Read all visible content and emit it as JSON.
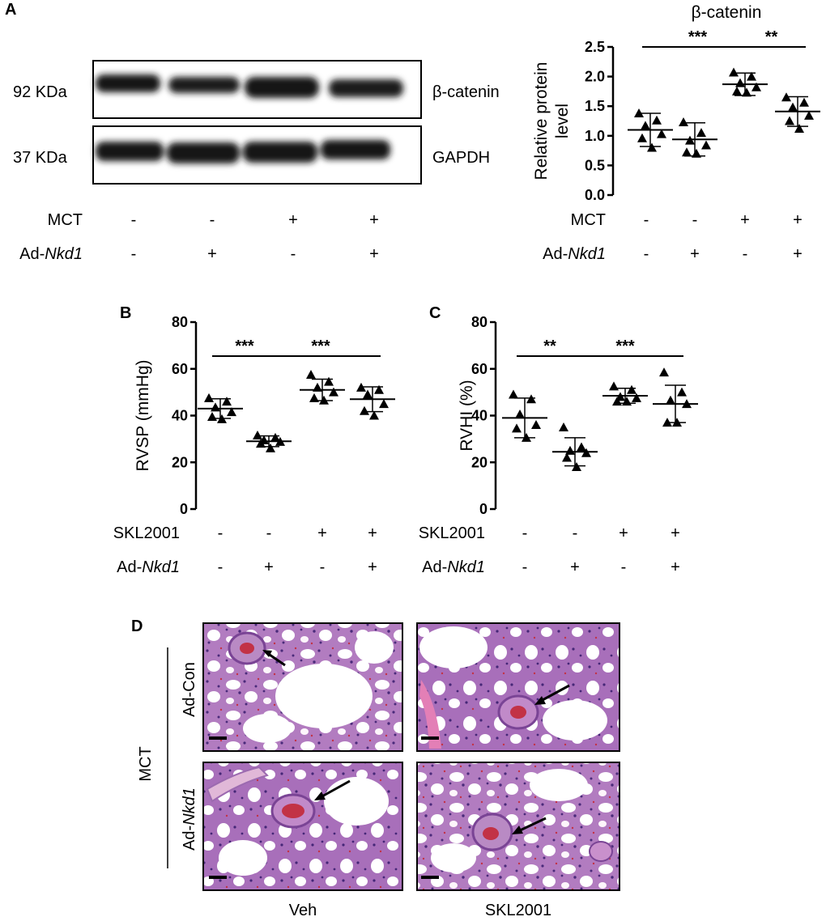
{
  "panels": {
    "A": "A",
    "B": "B",
    "C": "C",
    "D": "D"
  },
  "blot": {
    "bands": [
      {
        "kda": "92 KDa",
        "protein": "β-catenin"
      },
      {
        "kda": "37 KDa",
        "protein": "GAPDH"
      }
    ],
    "rows": [
      {
        "label": "MCT",
        "italic_part": "",
        "signs": [
          "-",
          "-",
          "+",
          "+"
        ]
      },
      {
        "label": "Ad-",
        "italic_part": "Nkd1",
        "signs": [
          "-",
          "+",
          "-",
          "+"
        ]
      }
    ]
  },
  "chart_data": [
    {
      "id": "A",
      "type": "scatter",
      "title": "β-catenin",
      "ylabel": "Relative protein level",
      "ylim": [
        0.0,
        2.5
      ],
      "yticks": [
        "0.0",
        "0.5",
        "1.0",
        "1.5",
        "2.0",
        "2.5"
      ],
      "groups": [
        {
          "mean": 1.1,
          "sd": 0.28,
          "points": [
            1.38,
            1.26,
            1.17,
            1.03,
            0.96,
            0.8
          ]
        },
        {
          "mean": 0.94,
          "sd": 0.28,
          "points": [
            1.23,
            1.05,
            0.92,
            0.84,
            0.72,
            0.7
          ]
        },
        {
          "mean": 1.87,
          "sd": 0.19,
          "points": [
            2.07,
            2.0,
            1.89,
            1.82,
            1.75,
            1.73
          ]
        },
        {
          "mean": 1.41,
          "sd": 0.25,
          "points": [
            1.65,
            1.56,
            1.48,
            1.34,
            1.25,
            1.12
          ]
        }
      ],
      "significance": [
        {
          "from": 0,
          "to": 2,
          "label": "***"
        },
        {
          "from": 2,
          "to": 3,
          "label": "**"
        }
      ],
      "rows": [
        {
          "label": "MCT",
          "italic_part": "",
          "signs": [
            "-",
            "-",
            "+",
            "+"
          ]
        },
        {
          "label": "Ad-",
          "italic_part": "Nkd1",
          "signs": [
            "-",
            "+",
            "-",
            "+"
          ]
        }
      ]
    },
    {
      "id": "B",
      "type": "scatter",
      "ylabel": "RVSP (mmHg)",
      "ylim": [
        0,
        80
      ],
      "yticks": [
        "0",
        "20",
        "40",
        "60",
        "80"
      ],
      "groups": [
        {
          "mean": 43.0,
          "sd": 4.2,
          "points": [
            47.5,
            46.0,
            43.5,
            41.5,
            39.5,
            38.5
          ]
        },
        {
          "mean": 29.0,
          "sd": 2.3,
          "points": [
            31.5,
            30.5,
            29.5,
            28.8,
            28.0,
            26.0
          ]
        },
        {
          "mean": 51.0,
          "sd": 4.6,
          "points": [
            57.5,
            54.5,
            52.0,
            50.0,
            47.5,
            46.5
          ]
        },
        {
          "mean": 47.0,
          "sd": 5.3,
          "points": [
            52.0,
            51.0,
            49.0,
            45.0,
            42.0,
            40.0
          ]
        }
      ],
      "significance": [
        {
          "from": 0,
          "to": 1,
          "label": "***"
        },
        {
          "from": 1,
          "to": 3,
          "label": "***"
        }
      ],
      "rows": [
        {
          "label": "SKL2001",
          "italic_part": "",
          "signs": [
            "-",
            "-",
            "+",
            "+"
          ]
        },
        {
          "label": "Ad-",
          "italic_part": "Nkd1",
          "signs": [
            "-",
            "+",
            "-",
            "+"
          ]
        }
      ]
    },
    {
      "id": "C",
      "type": "scatter",
      "ylabel": "RVHI (%)",
      "ylim": [
        0,
        80
      ],
      "yticks": [
        "0",
        "20",
        "40",
        "60",
        "80"
      ],
      "groups": [
        {
          "mean": 39.0,
          "sd": 8.5,
          "points": [
            49.0,
            47.0,
            40.5,
            36.0,
            34.5,
            30.5
          ]
        },
        {
          "mean": 24.5,
          "sd": 6.0,
          "points": [
            35.0,
            26.5,
            25.0,
            24.0,
            22.0,
            18.0
          ]
        },
        {
          "mean": 48.5,
          "sd": 3.2,
          "points": [
            52.5,
            51.0,
            48.0,
            47.5,
            46.0,
            46.0
          ]
        },
        {
          "mean": 45.0,
          "sd": 8.0,
          "points": [
            58.5,
            50.0,
            46.5,
            45.0,
            37.0,
            37.0
          ]
        }
      ],
      "significance": [
        {
          "from": 0,
          "to": 1,
          "label": "**"
        },
        {
          "from": 1,
          "to": 3,
          "label": "***"
        }
      ],
      "rows": [
        {
          "label": "SKL2001",
          "italic_part": "",
          "signs": [
            "-",
            "-",
            "+",
            "+"
          ]
        },
        {
          "label": "Ad-",
          "italic_part": "Nkd1",
          "signs": [
            "-",
            "+",
            "-",
            "+"
          ]
        }
      ]
    }
  ],
  "histology": {
    "group_label": "MCT",
    "rows": [
      {
        "label": "Ad-Con",
        "plain": "Ad-Con",
        "italic_part": ""
      },
      {
        "label": "Ad-Nkd1",
        "plain": "Ad-",
        "italic_part": "Nkd1"
      }
    ],
    "columns": [
      "Veh",
      "SKL2001"
    ]
  },
  "colors": {
    "ink": "#000000",
    "tissue_bg": "#f6eef6",
    "tissue_purple": "#8a4fa6",
    "tissue_pink": "#d98ac4",
    "tissue_red": "#c23246"
  }
}
